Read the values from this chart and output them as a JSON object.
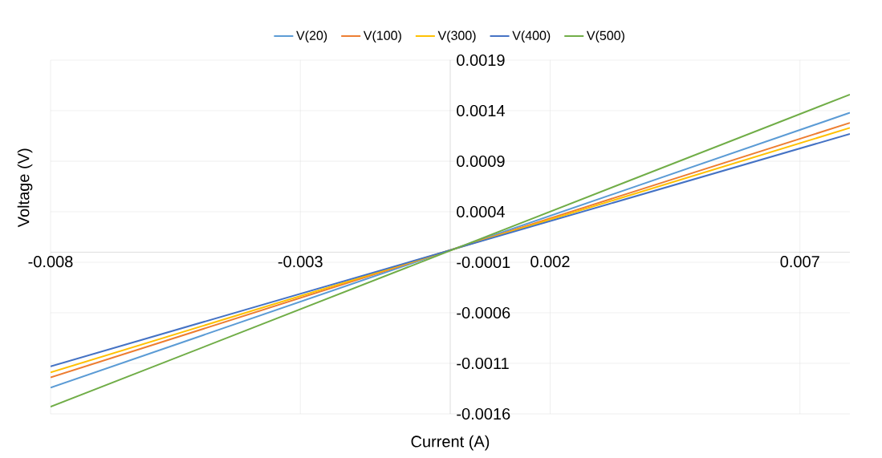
{
  "chart_data": {
    "type": "line",
    "xlabel": "Current (A)",
    "ylabel": "Voltage (V)",
    "x": [
      -0.008,
      0.008
    ],
    "xlim": [
      -0.008,
      0.008
    ],
    "xticks": [
      -0.008,
      -0.003,
      0.002,
      0.007
    ],
    "ylim": [
      -0.0016,
      0.0019
    ],
    "yticks": [
      -0.0016,
      -0.0011,
      -0.0006,
      -0.0001,
      0.0004,
      0.0009,
      0.0014,
      0.0019
    ],
    "grid": true,
    "legend": "top",
    "marker": "none",
    "line_style": "solid",
    "series": [
      {
        "name": "V(20)",
        "color": "#5b9bd5",
        "values": [
          -0.00134,
          0.00138
        ]
      },
      {
        "name": "V(100)",
        "color": "#ed7d31",
        "values": [
          -0.00124,
          0.00128
        ]
      },
      {
        "name": "V(300)",
        "color": "#ffc000",
        "values": [
          -0.00119,
          0.00123
        ]
      },
      {
        "name": "V(400)",
        "color": "#4472c4",
        "values": [
          -0.00113,
          0.00117
        ]
      },
      {
        "name": "V(500)",
        "color": "#70ad47",
        "values": [
          -0.00153,
          0.00156
        ]
      }
    ]
  }
}
